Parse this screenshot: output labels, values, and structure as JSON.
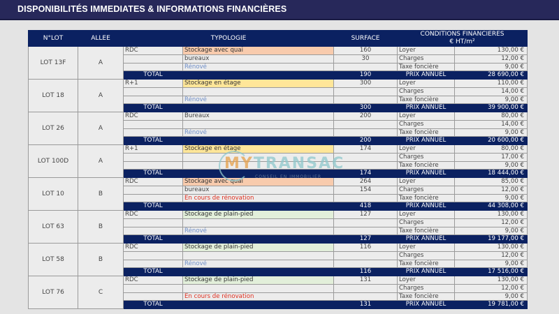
{
  "title": "DISPONIBILITÉS IMMEDIATES & INFORMATIONS FINANCIÈRES",
  "headers": {
    "lot": "N°LOT",
    "allee": "ALLEE",
    "typologie": "TYPOLOGIE",
    "surface": "SURFACE",
    "conditions": "CONDITIONS FINANCIERES",
    "conditions_unit": "€ HT/m²"
  },
  "total_label": "TOTAL",
  "prix_label": "PRIX ANNUEL",
  "colors": {
    "navy": "#0b2161",
    "orange": "#f8cbad",
    "yellow": "#ffe699",
    "green": "#e2efda",
    "renove": "#6f8fc8",
    "renovation": "#e03020"
  },
  "logo": {
    "my": "MY",
    "transac": "TRANSAC",
    "tagline": "CONSEIL EN IMMOBILIER"
  },
  "lots": [
    {
      "lot": "LOT 13F",
      "allee": "A",
      "total_surface": "190",
      "prix": "28 690,00 €",
      "rows": [
        {
          "level": "RDC",
          "type": "Stockage avec quai",
          "style": "orange",
          "surface": "160",
          "cond": "Loyer",
          "value": "130,00 €"
        },
        {
          "level": "",
          "type": "bureaux",
          "style": "",
          "surface": "30",
          "cond": "Charges",
          "value": "12,00 €"
        },
        {
          "level": "",
          "type": "Rénové",
          "style": "blue",
          "surface": "",
          "cond": "Taxe foncière",
          "value": "9,00 €"
        }
      ]
    },
    {
      "lot": "LOT 18",
      "allee": "A",
      "total_surface": "300",
      "prix": "39 900,00 €",
      "rows": [
        {
          "level": "R+1",
          "type": "Stockage en étage",
          "style": "yellow",
          "surface": "300",
          "cond": "Loyer",
          "value": "110,00 €"
        },
        {
          "level": "",
          "type": "",
          "style": "",
          "surface": "",
          "cond": "Charges",
          "value": "14,00 €"
        },
        {
          "level": "",
          "type": "Rénové",
          "style": "blue",
          "surface": "",
          "cond": "Taxe foncière",
          "value": "9,00 €"
        }
      ]
    },
    {
      "lot": "LOT 26",
      "allee": "A",
      "total_surface": "200",
      "prix": "20 600,00 €",
      "rows": [
        {
          "level": "RDC",
          "type": "Bureaux",
          "style": "",
          "surface": "200",
          "cond": "Loyer",
          "value": "80,00 €"
        },
        {
          "level": "",
          "type": "",
          "style": "",
          "surface": "",
          "cond": "Charges",
          "value": "14,00 €"
        },
        {
          "level": "",
          "type": "Rénové",
          "style": "blue",
          "surface": "",
          "cond": "Taxe foncière",
          "value": "9,00 €"
        }
      ]
    },
    {
      "lot": "LOT 100D",
      "allee": "A",
      "total_surface": "174",
      "prix": "18 444,00 €",
      "rows": [
        {
          "level": "R+1",
          "type": "Stockage en étage",
          "style": "yellow",
          "surface": "174",
          "cond": "Loyer",
          "value": "80,00 €"
        },
        {
          "level": "",
          "type": "",
          "style": "",
          "surface": "",
          "cond": "Charges",
          "value": "17,00 €"
        },
        {
          "level": "",
          "type": "",
          "style": "",
          "surface": "",
          "cond": "Taxe foncière",
          "value": "9,00 €"
        }
      ]
    },
    {
      "lot": "LOT 10",
      "allee": "B",
      "total_surface": "418",
      "prix": "44 308,00 €",
      "rows": [
        {
          "level": "RDC",
          "type": "Stockage avec quai",
          "style": "orange",
          "surface": "264",
          "cond": "Loyer",
          "value": "85,00 €"
        },
        {
          "level": "",
          "type": "bureaux",
          "style": "",
          "surface": "154",
          "cond": "Charges",
          "value": "12,00 €"
        },
        {
          "level": "",
          "type": "En cours de rénovation",
          "style": "red",
          "surface": "",
          "cond": "Taxe foncière",
          "value": "9,00 €"
        }
      ]
    },
    {
      "lot": "LOT 63",
      "allee": "B",
      "total_surface": "127",
      "prix": "19 177,00 €",
      "rows": [
        {
          "level": "RDC",
          "type": "Stockage de plain-pied",
          "style": "green",
          "surface": "127",
          "cond": "Loyer",
          "value": "130,00 €"
        },
        {
          "level": "",
          "type": "",
          "style": "",
          "surface": "",
          "cond": "Charges",
          "value": "12,00 €"
        },
        {
          "level": "",
          "type": "Rénové",
          "style": "blue",
          "surface": "",
          "cond": "Taxe foncière",
          "value": "9,00 €"
        }
      ]
    },
    {
      "lot": "LOT 58",
      "allee": "B",
      "total_surface": "116",
      "prix": "17 516,00 €",
      "rows": [
        {
          "level": "RDC",
          "type": "Stockage de plain-pied",
          "style": "green",
          "surface": "116",
          "cond": "Loyer",
          "value": "130,00 €"
        },
        {
          "level": "",
          "type": "",
          "style": "",
          "surface": "",
          "cond": "Charges",
          "value": "12,00 €"
        },
        {
          "level": "",
          "type": "Rénové",
          "style": "blue",
          "surface": "",
          "cond": "Taxe foncière",
          "value": "9,00 €"
        }
      ]
    },
    {
      "lot": "LOT 76",
      "allee": "C",
      "total_surface": "131",
      "prix": "19 781,00 €",
      "rows": [
        {
          "level": "RDC",
          "type": "Stockage de plain-pied",
          "style": "green",
          "surface": "131",
          "cond": "Loyer",
          "value": "130,00 €"
        },
        {
          "level": "",
          "type": "",
          "style": "",
          "surface": "",
          "cond": "Charges",
          "value": "12,00 €"
        },
        {
          "level": "",
          "type": "En cours de rénovation",
          "style": "red",
          "surface": "",
          "cond": "Taxe foncière",
          "value": "9,00 €"
        }
      ]
    }
  ]
}
